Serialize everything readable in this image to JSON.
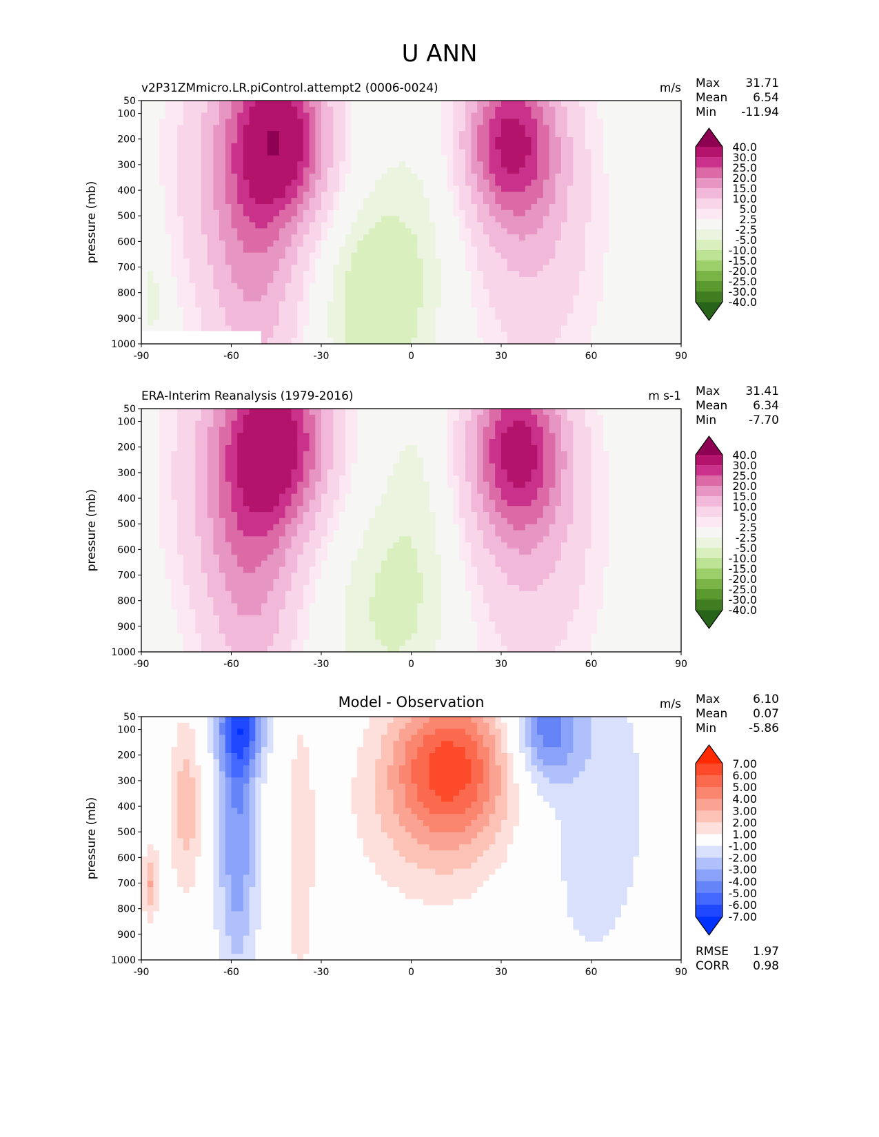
{
  "title": "U ANN",
  "panels": [
    {
      "left_title": "v2P31ZMmicro.LR.piControl.attempt2 (0006-0024)",
      "center_title": "",
      "units": "m/s",
      "stats": [
        {
          "label": "Max",
          "value": "31.71"
        },
        {
          "label": "Mean",
          "value": "6.54"
        },
        {
          "label": "Min",
          "value": "-11.94"
        }
      ]
    },
    {
      "left_title": "ERA-Interim Reanalysis (1979-2016)",
      "center_title": "",
      "units": "m s-1",
      "stats": [
        {
          "label": "Max",
          "value": "31.41"
        },
        {
          "label": "Mean",
          "value": "6.34"
        },
        {
          "label": "Min",
          "value": "-7.70"
        }
      ]
    },
    {
      "left_title": "",
      "center_title": "Model - Observation",
      "units": "m/s",
      "stats": [
        {
          "label": "Max",
          "value": "6.10"
        },
        {
          "label": "Mean",
          "value": "0.07"
        },
        {
          "label": "Min",
          "value": "-5.86"
        }
      ],
      "bottom_stats": [
        {
          "label": "RMSE",
          "value": "1.97"
        },
        {
          "label": "CORR",
          "value": "0.98"
        }
      ]
    }
  ],
  "chart_data": {
    "type": "heatmap",
    "ylabel": "pressure (mb)",
    "xlim": [
      -90,
      90
    ],
    "ylim": [
      1000,
      50
    ],
    "xticks": [
      "-90",
      "-60",
      "-30",
      "0",
      "30",
      "60",
      "90"
    ],
    "yticks": [
      "50",
      "100",
      "200",
      "300",
      "400",
      "500",
      "600",
      "700",
      "800",
      "900",
      "1000"
    ],
    "fields": [
      {
        "name": "model",
        "levels": [
          "-40.0",
          "-30.0",
          "-25.0",
          "-20.0",
          "-15.0",
          "-10.0",
          "-5.0",
          "-2.5",
          "2.5",
          "5.0",
          "10.0",
          "15.0",
          "20.0",
          "25.0",
          "30.0",
          "40.0"
        ],
        "colors": [
          "#276419",
          "#3f7d20",
          "#5b9a2f",
          "#7ab446",
          "#9ccf6a",
          "#bde394",
          "#d9efbd",
          "#eaf4df",
          "#f6f6f4",
          "#fbe8f2",
          "#f8d5e8",
          "#f1b8d9",
          "#e796c3",
          "#dc6aa6",
          "#c9318a",
          "#b3136b",
          "#8e0152"
        ],
        "blobs": [
          {
            "lat": -43,
            "p": 190,
            "amp": 31,
            "slat": 11,
            "sp": 230
          },
          {
            "lat": -52,
            "p": 650,
            "amp": 13,
            "slat": 11,
            "sp": 450
          },
          {
            "lat": -62,
            "p": 300,
            "amp": 8,
            "slat": 14,
            "sp": 400
          },
          {
            "lat": 33,
            "p": 200,
            "amp": 27,
            "slat": 11,
            "sp": 220
          },
          {
            "lat": 40,
            "p": 550,
            "amp": 10,
            "slat": 15,
            "sp": 420
          },
          {
            "lat": -12,
            "p": 850,
            "amp": -8,
            "slat": 12,
            "sp": 260
          },
          {
            "lat": 5,
            "p": 500,
            "amp": -3,
            "slat": 14,
            "sp": 350
          },
          {
            "lat": -86,
            "p": 800,
            "amp": -4,
            "slat": 3,
            "sp": 200
          }
        ],
        "missing": [
          {
            "lat0": -90,
            "lat1": -50,
            "p0": 950,
            "p1": 1000
          }
        ]
      },
      {
        "name": "observation",
        "levels": [
          "-40.0",
          "-30.0",
          "-25.0",
          "-20.0",
          "-15.0",
          "-10.0",
          "-5.0",
          "-2.5",
          "2.5",
          "5.0",
          "10.0",
          "15.0",
          "20.0",
          "25.0",
          "30.0",
          "40.0"
        ],
        "colors": [
          "#276419",
          "#3f7d20",
          "#5b9a2f",
          "#7ab446",
          "#9ccf6a",
          "#bde394",
          "#d9efbd",
          "#eaf4df",
          "#f6f6f4",
          "#fbe8f2",
          "#f8d5e8",
          "#f1b8d9",
          "#e796c3",
          "#dc6aa6",
          "#c9318a",
          "#b3136b",
          "#8e0152"
        ],
        "blobs": [
          {
            "lat": -44,
            "p": 170,
            "amp": 30,
            "slat": 12,
            "sp": 250
          },
          {
            "lat": -53,
            "p": 650,
            "amp": 14,
            "slat": 11,
            "sp": 450
          },
          {
            "lat": -64,
            "p": 300,
            "amp": 8,
            "slat": 13,
            "sp": 400
          },
          {
            "lat": 35,
            "p": 200,
            "amp": 27,
            "slat": 11,
            "sp": 230
          },
          {
            "lat": 40,
            "p": 550,
            "amp": 10,
            "slat": 15,
            "sp": 420
          },
          {
            "lat": -8,
            "p": 850,
            "amp": -5,
            "slat": 14,
            "sp": 300
          },
          {
            "lat": 3,
            "p": 400,
            "amp": -3,
            "slat": 10,
            "sp": 400
          }
        ],
        "missing": []
      },
      {
        "name": "difference",
        "levels": [
          "-7.00",
          "-6.00",
          "-5.00",
          "-4.00",
          "-3.00",
          "-2.00",
          "-1.00",
          "1.00",
          "2.00",
          "3.00",
          "4.00",
          "5.00",
          "6.00",
          "7.00"
        ],
        "colors": [
          "#0032ff",
          "#1f48ff",
          "#4268ff",
          "#6584f8",
          "#8aa2f8",
          "#b0c0fa",
          "#d8e0fc",
          "#fdfdfd",
          "#fde0dc",
          "#fcc2b6",
          "#fba393",
          "#fa8670",
          "#fb6a4e",
          "#fc4a2a",
          "#ff2a00"
        ],
        "blobs": [
          {
            "lat": 13,
            "p": 220,
            "amp": 5.3,
            "slat": 14,
            "sp": 200
          },
          {
            "lat": 10,
            "p": 450,
            "amp": 2.2,
            "slat": 20,
            "sp": 250
          },
          {
            "lat": -57,
            "p": 80,
            "amp": -5.5,
            "slat": 6,
            "sp": 150
          },
          {
            "lat": -58,
            "p": 450,
            "amp": -3,
            "slat": 4,
            "sp": 300
          },
          {
            "lat": 45,
            "p": 100,
            "amp": -4,
            "slat": 8,
            "sp": 150
          },
          {
            "lat": 60,
            "p": 400,
            "amp": -1.5,
            "slat": 18,
            "sp": 600
          },
          {
            "lat": -75,
            "p": 400,
            "amp": 2.6,
            "slat": 4,
            "sp": 250
          },
          {
            "lat": -37,
            "p": 600,
            "amp": 1.5,
            "slat": 4,
            "sp": 500
          },
          {
            "lat": -58,
            "p": 800,
            "amp": -1.6,
            "slat": 6,
            "sp": 300
          },
          {
            "lat": -87,
            "p": 700,
            "amp": 3,
            "slat": 2,
            "sp": 100
          }
        ],
        "missing": []
      }
    ]
  }
}
